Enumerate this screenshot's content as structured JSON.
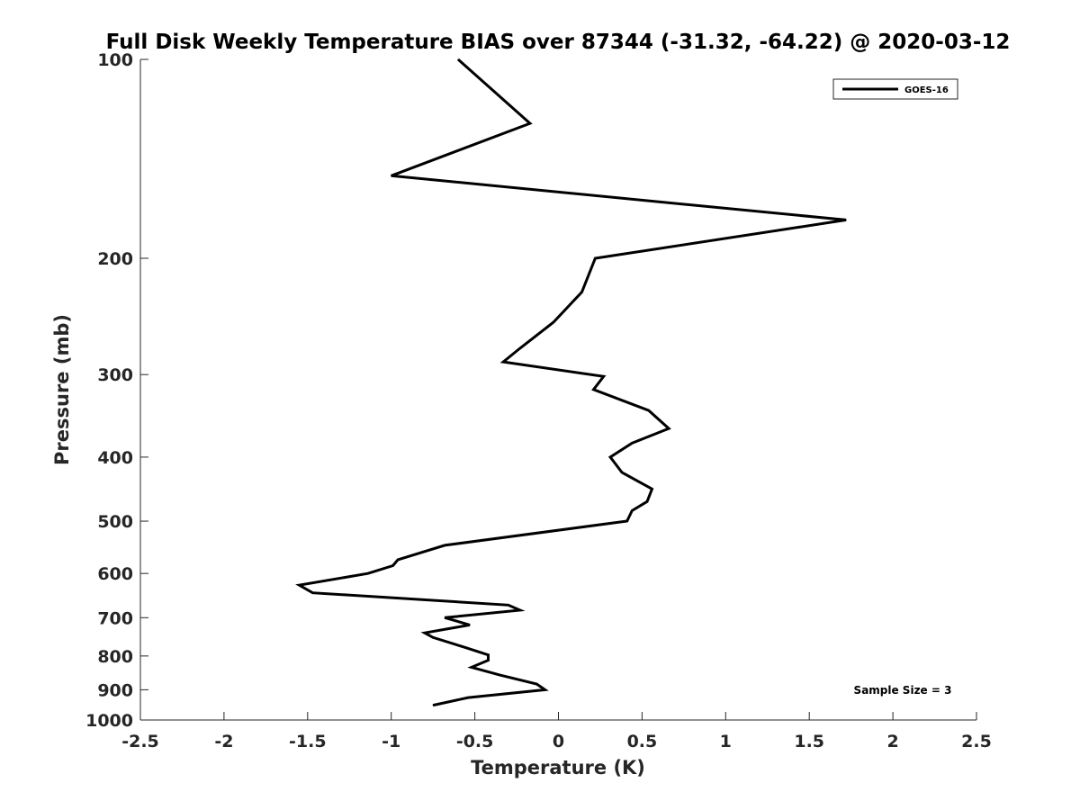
{
  "chart_data": {
    "type": "line",
    "title": "Full Disk Weekly Temperature BIAS over 87344 (-31.32, -64.22) @ 2020-03-12",
    "xlabel": "Temperature (K)",
    "ylabel": "Pressure (mb)",
    "xlim": [
      -2.5,
      2.5
    ],
    "ylim": [
      1000,
      100
    ],
    "yscale": "log",
    "y_reversed": true,
    "x_ticks": [
      -2.5,
      -2,
      -1.5,
      -1,
      -0.5,
      0,
      0.5,
      1,
      1.5,
      2,
      2.5
    ],
    "x_tick_labels": [
      "-2.5",
      "-2",
      "-1.5",
      "-1",
      "-0.5",
      "0",
      "0.5",
      "1",
      "1.5",
      "2",
      "2.5"
    ],
    "y_ticks": [
      100,
      200,
      300,
      400,
      500,
      600,
      700,
      800,
      900,
      1000
    ],
    "y_tick_labels": [
      "100",
      "200",
      "300",
      "400",
      "500",
      "600",
      "700",
      "800",
      "900",
      "1000"
    ],
    "grid": false,
    "legend_position": "top-right",
    "annotation": "Sample Size = 3",
    "series": [
      {
        "name": "GOES-16",
        "color": "#000000",
        "points": [
          {
            "x": -0.6,
            "y": 100
          },
          {
            "x": -0.17,
            "y": 125
          },
          {
            "x": -1.0,
            "y": 150
          },
          {
            "x": 1.72,
            "y": 175
          },
          {
            "x": 0.22,
            "y": 200
          },
          {
            "x": 0.14,
            "y": 225
          },
          {
            "x": -0.03,
            "y": 250
          },
          {
            "x": -0.24,
            "y": 275
          },
          {
            "x": -0.33,
            "y": 287
          },
          {
            "x": 0.27,
            "y": 302
          },
          {
            "x": 0.21,
            "y": 316
          },
          {
            "x": 0.54,
            "y": 340
          },
          {
            "x": 0.66,
            "y": 362
          },
          {
            "x": 0.44,
            "y": 381
          },
          {
            "x": 0.31,
            "y": 400
          },
          {
            "x": 0.38,
            "y": 422
          },
          {
            "x": 0.56,
            "y": 447
          },
          {
            "x": 0.53,
            "y": 467
          },
          {
            "x": 0.44,
            "y": 482
          },
          {
            "x": 0.41,
            "y": 500
          },
          {
            "x": -0.68,
            "y": 544
          },
          {
            "x": -0.96,
            "y": 572
          },
          {
            "x": -0.99,
            "y": 584
          },
          {
            "x": -1.14,
            "y": 600
          },
          {
            "x": -1.55,
            "y": 625
          },
          {
            "x": -1.47,
            "y": 642
          },
          {
            "x": -0.3,
            "y": 670
          },
          {
            "x": -0.23,
            "y": 682
          },
          {
            "x": -0.68,
            "y": 700
          },
          {
            "x": -0.53,
            "y": 718
          },
          {
            "x": -0.8,
            "y": 738
          },
          {
            "x": -0.75,
            "y": 750
          },
          {
            "x": -0.57,
            "y": 775
          },
          {
            "x": -0.42,
            "y": 797
          },
          {
            "x": -0.42,
            "y": 812
          },
          {
            "x": -0.52,
            "y": 832
          },
          {
            "x": -0.35,
            "y": 855
          },
          {
            "x": -0.13,
            "y": 882
          },
          {
            "x": -0.08,
            "y": 900
          },
          {
            "x": -0.54,
            "y": 925
          },
          {
            "x": -0.75,
            "y": 950
          }
        ]
      }
    ]
  }
}
